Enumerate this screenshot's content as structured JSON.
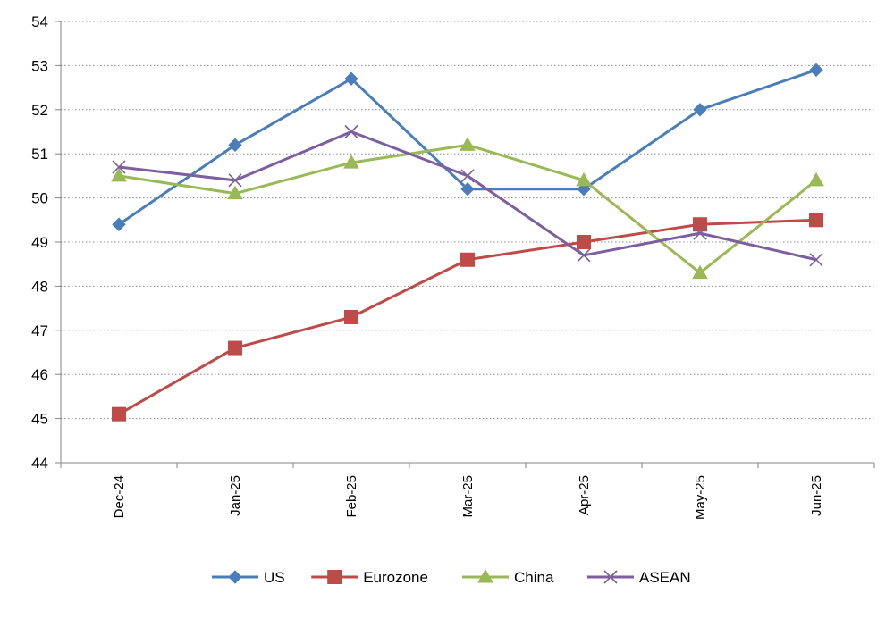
{
  "chart_data": {
    "type": "line",
    "categories": [
      "Dec-24",
      "Jan-25",
      "Feb-25",
      "Mar-25",
      "Apr-25",
      "May-25",
      "Jun-25"
    ],
    "ylim": [
      44,
      54
    ],
    "yticks": [
      44,
      45,
      46,
      47,
      48,
      49,
      50,
      51,
      52,
      53,
      54
    ],
    "grid": "horizontal-dotted",
    "legend": "bottom",
    "series": [
      {
        "name": "US",
        "color": "#4a7ebb",
        "marker": "diamond",
        "values": [
          49.4,
          51.2,
          52.7,
          50.2,
          50.2,
          52.0,
          52.9
        ]
      },
      {
        "name": "Eurozone",
        "color": "#be4b48",
        "marker": "square",
        "values": [
          45.1,
          46.6,
          47.3,
          48.6,
          49.0,
          49.4,
          49.5
        ]
      },
      {
        "name": "China",
        "color": "#98b954",
        "marker": "triangle",
        "values": [
          50.5,
          50.1,
          50.8,
          51.2,
          50.4,
          48.3,
          50.4
        ]
      },
      {
        "name": "ASEAN",
        "color": "#7d5fa0",
        "marker": "x",
        "values": [
          50.7,
          50.4,
          51.5,
          50.5,
          48.7,
          49.2,
          48.6
        ]
      }
    ]
  }
}
